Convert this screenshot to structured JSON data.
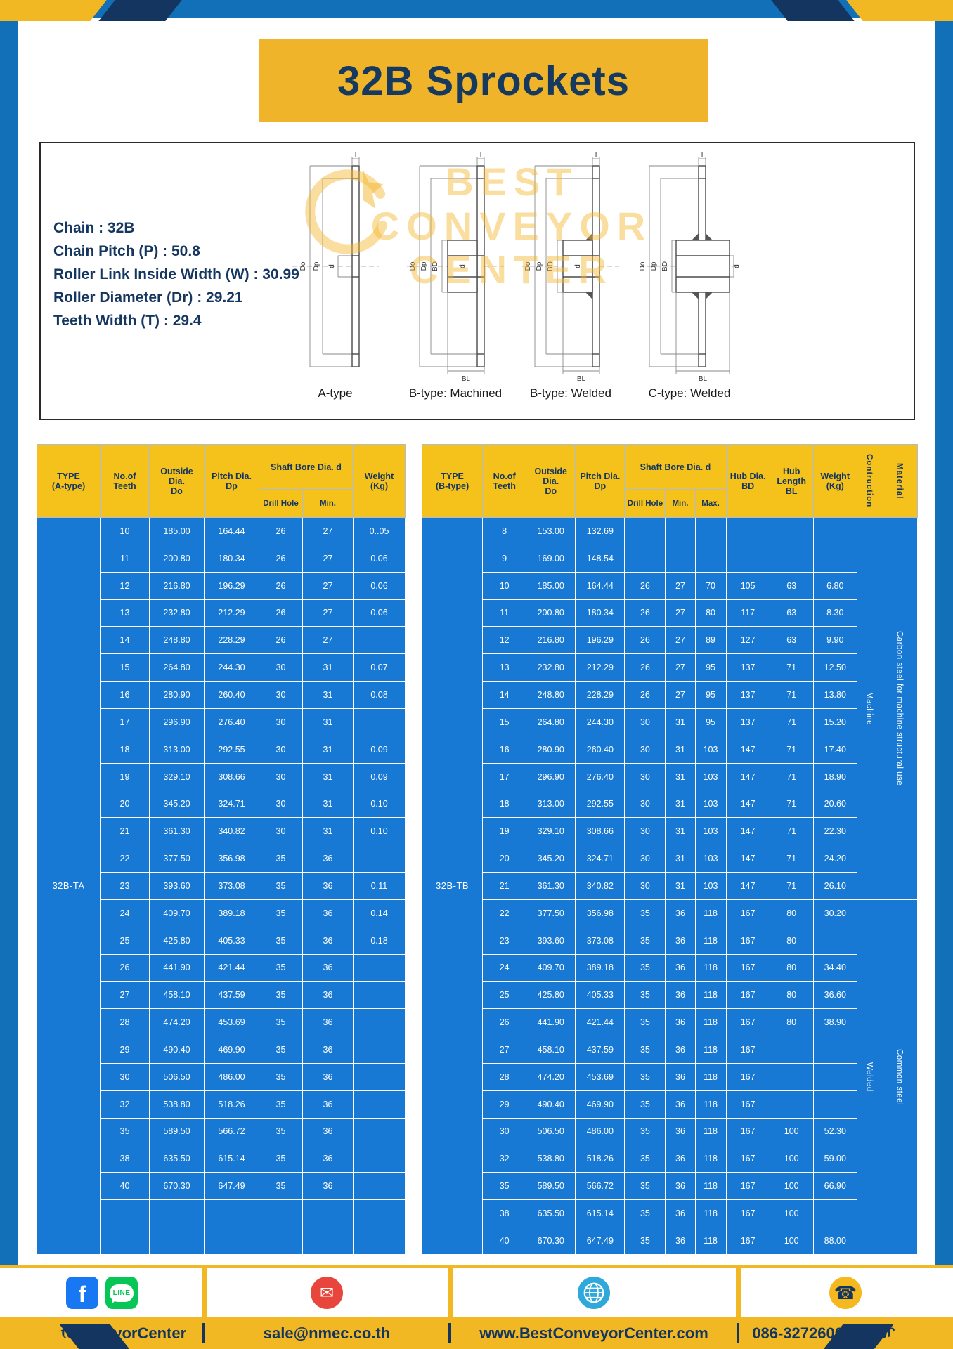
{
  "title": "32B Sprockets",
  "colors": {
    "frame_blue": "#1170B8",
    "table_blue": "#1779D4",
    "header_gold": "#F5C21B",
    "banner_gold": "#F0B42A",
    "footer_gold": "#F2B824",
    "navy": "#14355F"
  },
  "specs": [
    "Chain : 32B",
    "Chain Pitch (P) : 50.8",
    "Roller Link Inside Width (W) : 30.99",
    "Roller Diameter (Dr) : 29.21",
    "Teeth Width (T) : 29.4"
  ],
  "watermark": [
    "BEST",
    "CONVEYOR",
    "CENTER"
  ],
  "dims": {
    "T": "T",
    "Do": "Do",
    "Dp": "Dp",
    "d": "d",
    "BL": "BL",
    "BD": "BD"
  },
  "drawings": [
    "A-type",
    "B-type: Machined",
    "B-type: Welded",
    "C-type: Welded"
  ],
  "table_a": {
    "type_label": "32B-TA",
    "headers": {
      "type": "TYPE\n(A-type)",
      "teeth": "No.of\nTeeth",
      "outside": "Outside\nDia.\nDo",
      "pitch": "Pitch Dia.\nDp",
      "shaft": "Shaft Bore Dia. d",
      "drill": "Drill Hole",
      "min": "Min.",
      "weight": "Weight\n(Kg)"
    },
    "rows": [
      [
        "10",
        "185.00",
        "164.44",
        "26",
        "27",
        "0..05"
      ],
      [
        "11",
        "200.80",
        "180.34",
        "26",
        "27",
        "0.06"
      ],
      [
        "12",
        "216.80",
        "196.29",
        "26",
        "27",
        "0.06"
      ],
      [
        "13",
        "232.80",
        "212.29",
        "26",
        "27",
        "0.06"
      ],
      [
        "14",
        "248.80",
        "228.29",
        "26",
        "27",
        ""
      ],
      [
        "15",
        "264.80",
        "244.30",
        "30",
        "31",
        "0.07"
      ],
      [
        "16",
        "280.90",
        "260.40",
        "30",
        "31",
        "0.08"
      ],
      [
        "17",
        "296.90",
        "276.40",
        "30",
        "31",
        ""
      ],
      [
        "18",
        "313.00",
        "292.55",
        "30",
        "31",
        "0.09"
      ],
      [
        "19",
        "329.10",
        "308.66",
        "30",
        "31",
        "0.09"
      ],
      [
        "20",
        "345.20",
        "324.71",
        "30",
        "31",
        "0.10"
      ],
      [
        "21",
        "361.30",
        "340.82",
        "30",
        "31",
        "0.10"
      ],
      [
        "22",
        "377.50",
        "356.98",
        "35",
        "36",
        ""
      ],
      [
        "23",
        "393.60",
        "373.08",
        "35",
        "36",
        "0.11"
      ],
      [
        "24",
        "409.70",
        "389.18",
        "35",
        "36",
        "0.14"
      ],
      [
        "25",
        "425.80",
        "405.33",
        "35",
        "36",
        "0.18"
      ],
      [
        "26",
        "441.90",
        "421.44",
        "35",
        "36",
        ""
      ],
      [
        "27",
        "458.10",
        "437.59",
        "35",
        "36",
        ""
      ],
      [
        "28",
        "474.20",
        "453.69",
        "35",
        "36",
        ""
      ],
      [
        "29",
        "490.40",
        "469.90",
        "35",
        "36",
        ""
      ],
      [
        "30",
        "506.50",
        "486.00",
        "35",
        "36",
        ""
      ],
      [
        "32",
        "538.80",
        "518.26",
        "35",
        "36",
        ""
      ],
      [
        "35",
        "589.50",
        "566.72",
        "35",
        "36",
        ""
      ],
      [
        "38",
        "635.50",
        "615.14",
        "35",
        "36",
        ""
      ],
      [
        "40",
        "670.30",
        "647.49",
        "35",
        "36",
        ""
      ],
      [
        "",
        "",
        "",
        "",
        "",
        ""
      ],
      [
        "",
        "",
        "",
        "",
        "",
        ""
      ]
    ]
  },
  "table_b": {
    "type_label": "32B-TB",
    "headers": {
      "type": "TYPE\n(B-type)",
      "teeth": "No.of\nTeeth",
      "outside": "Outside\nDia.\nDo",
      "pitch": "Pitch Dia.\nDp",
      "shaft": "Shaft Bore Dia. d",
      "drill": "Drill Hole",
      "min": "Min.",
      "max": "Max.",
      "hub_dia": "Hub Dia.\nBD",
      "hub_len": "Hub\nLength\nBL",
      "weight": "Weight\n(Kg)",
      "construction": "Contruction",
      "material": "Material"
    },
    "rows": [
      [
        "8",
        "153.00",
        "132.69",
        "",
        "",
        "",
        "",
        "",
        ""
      ],
      [
        "9",
        "169.00",
        "148.54",
        "",
        "",
        "",
        "",
        "",
        ""
      ],
      [
        "10",
        "185.00",
        "164.44",
        "26",
        "27",
        "70",
        "105",
        "63",
        "6.80"
      ],
      [
        "11",
        "200.80",
        "180.34",
        "26",
        "27",
        "80",
        "117",
        "63",
        "8.30"
      ],
      [
        "12",
        "216.80",
        "196.29",
        "26",
        "27",
        "89",
        "127",
        "63",
        "9.90"
      ],
      [
        "13",
        "232.80",
        "212.29",
        "26",
        "27",
        "95",
        "137",
        "71",
        "12.50"
      ],
      [
        "14",
        "248.80",
        "228.29",
        "26",
        "27",
        "95",
        "137",
        "71",
        "13.80"
      ],
      [
        "15",
        "264.80",
        "244.30",
        "30",
        "31",
        "95",
        "137",
        "71",
        "15.20"
      ],
      [
        "16",
        "280.90",
        "260.40",
        "30",
        "31",
        "103",
        "147",
        "71",
        "17.40"
      ],
      [
        "17",
        "296.90",
        "276.40",
        "30",
        "31",
        "103",
        "147",
        "71",
        "18.90"
      ],
      [
        "18",
        "313.00",
        "292.55",
        "30",
        "31",
        "103",
        "147",
        "71",
        "20.60"
      ],
      [
        "19",
        "329.10",
        "308.66",
        "30",
        "31",
        "103",
        "147",
        "71",
        "22.30"
      ],
      [
        "20",
        "345.20",
        "324.71",
        "30",
        "31",
        "103",
        "147",
        "71",
        "24.20"
      ],
      [
        "21",
        "361.30",
        "340.82",
        "30",
        "31",
        "103",
        "147",
        "71",
        "26.10"
      ],
      [
        "22",
        "377.50",
        "356.98",
        "35",
        "36",
        "118",
        "167",
        "80",
        "30.20"
      ],
      [
        "23",
        "393.60",
        "373.08",
        "35",
        "36",
        "118",
        "167",
        "80",
        ""
      ],
      [
        "24",
        "409.70",
        "389.18",
        "35",
        "36",
        "118",
        "167",
        "80",
        "34.40"
      ],
      [
        "25",
        "425.80",
        "405.33",
        "35",
        "36",
        "118",
        "167",
        "80",
        "36.60"
      ],
      [
        "26",
        "441.90",
        "421.44",
        "35",
        "36",
        "118",
        "167",
        "80",
        "38.90"
      ],
      [
        "27",
        "458.10",
        "437.59",
        "35",
        "36",
        "118",
        "167",
        "",
        ""
      ],
      [
        "28",
        "474.20",
        "453.69",
        "35",
        "36",
        "118",
        "167",
        "",
        ""
      ],
      [
        "29",
        "490.40",
        "469.90",
        "35",
        "36",
        "118",
        "167",
        "",
        ""
      ],
      [
        "30",
        "506.50",
        "486.00",
        "35",
        "36",
        "118",
        "167",
        "100",
        "52.30"
      ],
      [
        "32",
        "538.80",
        "518.26",
        "35",
        "36",
        "118",
        "167",
        "100",
        "59.00"
      ],
      [
        "35",
        "589.50",
        "566.72",
        "35",
        "36",
        "118",
        "167",
        "100",
        "66.90"
      ],
      [
        "38",
        "635.50",
        "615.14",
        "35",
        "36",
        "118",
        "167",
        "100",
        ""
      ],
      [
        "40",
        "670.30",
        "647.49",
        "35",
        "36",
        "118",
        "167",
        "100",
        "88.00"
      ]
    ],
    "construction": [
      {
        "label": "Machine",
        "start": 0,
        "span": 14
      },
      {
        "label": "Welded",
        "start": 14,
        "span": 13
      }
    ],
    "material": [
      {
        "label": "Carbon steel for machine structural use",
        "start": 0,
        "span": 14
      },
      {
        "label": "Common steel",
        "start": 14,
        "span": 13
      }
    ]
  },
  "footer": {
    "handle": "@BestConveyorCenter",
    "email": "sale@nmec.co.th",
    "website": "www.BestConveyorCenter.com",
    "phone": "086-3272600 , 02-0017766",
    "facebook_letter": "f",
    "line_label": "LINE",
    "icons": {
      "mail": "✉",
      "phone": "☎"
    }
  }
}
